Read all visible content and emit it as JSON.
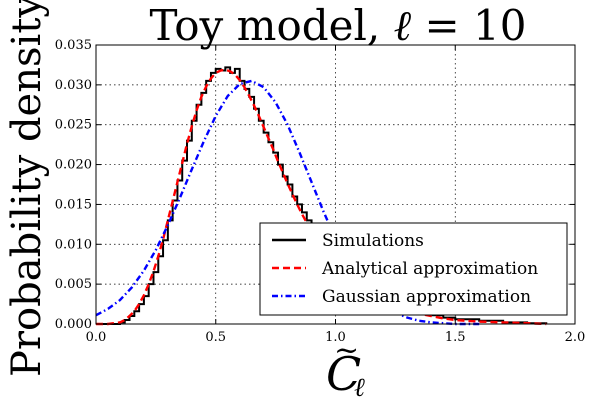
{
  "chart_data": {
    "type": "line",
    "title_prefix": "Toy model, ",
    "title_ell": "ℓ",
    "title_suffix": " = 10",
    "ylabel": "Probability density",
    "xlabel_main": "C",
    "xlabel_tilde": "~",
    "xlabel_sub": "ℓ",
    "xlim": [
      0.0,
      2.0
    ],
    "ylim": [
      0.0,
      0.035
    ],
    "xticks": [
      {
        "value": 0.0,
        "label": "0.0"
      },
      {
        "value": 0.5,
        "label": "0.5"
      },
      {
        "value": 1.0,
        "label": "1.0"
      },
      {
        "value": 1.5,
        "label": "1.5"
      },
      {
        "value": 2.0,
        "label": "2.0"
      }
    ],
    "yticks": [
      {
        "value": 0.0,
        "label": "0.000"
      },
      {
        "value": 0.005,
        "label": "0.005"
      },
      {
        "value": 0.01,
        "label": "0.010"
      },
      {
        "value": 0.015,
        "label": "0.015"
      },
      {
        "value": 0.02,
        "label": "0.020"
      },
      {
        "value": 0.025,
        "label": "0.025"
      },
      {
        "value": 0.03,
        "label": "0.030"
      },
      {
        "value": 0.035,
        "label": "0.035"
      }
    ],
    "grid": true,
    "legend_position": "lower-right",
    "series": [
      {
        "name": "Simulations",
        "color": "#000000",
        "style": "solid-step",
        "x": [
          0.0,
          0.05,
          0.1,
          0.12,
          0.14,
          0.16,
          0.18,
          0.2,
          0.22,
          0.24,
          0.26,
          0.28,
          0.3,
          0.32,
          0.34,
          0.36,
          0.38,
          0.4,
          0.42,
          0.44,
          0.46,
          0.48,
          0.5,
          0.52,
          0.54,
          0.56,
          0.58,
          0.6,
          0.62,
          0.64,
          0.66,
          0.68,
          0.7,
          0.72,
          0.74,
          0.76,
          0.78,
          0.8,
          0.82,
          0.84,
          0.86,
          0.88,
          0.9,
          0.92,
          0.94,
          0.96,
          0.98,
          1.0,
          1.05,
          1.1,
          1.15,
          1.2,
          1.25,
          1.3,
          1.35,
          1.4,
          1.45,
          1.5,
          1.6,
          1.7,
          1.8,
          1.88
        ],
        "y": [
          0.0,
          0.0,
          0.0002,
          0.0005,
          0.001,
          0.0016,
          0.0025,
          0.0035,
          0.005,
          0.0065,
          0.0085,
          0.0105,
          0.013,
          0.0155,
          0.018,
          0.0205,
          0.023,
          0.0255,
          0.0275,
          0.029,
          0.0305,
          0.0315,
          0.032,
          0.0318,
          0.0322,
          0.0315,
          0.032,
          0.0305,
          0.0295,
          0.0285,
          0.027,
          0.0255,
          0.024,
          0.0228,
          0.0215,
          0.02,
          0.0185,
          0.0175,
          0.016,
          0.015,
          0.014,
          0.013,
          0.012,
          0.011,
          0.01,
          0.0092,
          0.0085,
          0.0078,
          0.0065,
          0.0052,
          0.0042,
          0.0034,
          0.0026,
          0.002,
          0.0015,
          0.0011,
          0.0008,
          0.0006,
          0.0004,
          0.0002,
          0.0001,
          0.0
        ]
      },
      {
        "name": "Analytical approximation",
        "color": "#ff0000",
        "style": "dashed",
        "x": [
          0.0,
          0.05,
          0.1,
          0.12,
          0.14,
          0.16,
          0.18,
          0.2,
          0.22,
          0.24,
          0.26,
          0.28,
          0.3,
          0.32,
          0.34,
          0.36,
          0.38,
          0.4,
          0.42,
          0.44,
          0.46,
          0.48,
          0.5,
          0.52,
          0.54,
          0.56,
          0.58,
          0.6,
          0.62,
          0.64,
          0.66,
          0.68,
          0.7,
          0.72,
          0.74,
          0.76,
          0.78,
          0.8,
          0.82,
          0.84,
          0.86,
          0.88,
          0.9,
          0.92,
          0.94,
          0.96,
          0.98,
          1.0,
          1.05,
          1.1,
          1.15,
          1.2,
          1.25,
          1.3,
          1.35,
          1.4,
          1.45,
          1.5,
          1.6,
          1.7,
          1.8,
          1.88
        ],
        "y": [
          0.0,
          0.0,
          0.0002,
          0.0005,
          0.001,
          0.0016,
          0.0025,
          0.0036,
          0.005,
          0.0066,
          0.0085,
          0.0106,
          0.013,
          0.0154,
          0.0178,
          0.0202,
          0.0226,
          0.0248,
          0.0268,
          0.0285,
          0.0298,
          0.0308,
          0.0315,
          0.0318,
          0.0319,
          0.0317,
          0.0313,
          0.0306,
          0.0297,
          0.0286,
          0.0274,
          0.0261,
          0.0247,
          0.0233,
          0.0219,
          0.0204,
          0.019,
          0.0176,
          0.0163,
          0.015,
          0.0138,
          0.0127,
          0.0116,
          0.0106,
          0.0097,
          0.0088,
          0.008,
          0.0072,
          0.0058,
          0.0046,
          0.0036,
          0.0028,
          0.0022,
          0.0017,
          0.0013,
          0.001,
          0.0007,
          0.0005,
          0.0003,
          0.0002,
          0.0001,
          0.0
        ]
      },
      {
        "name": "Gaussian approximation",
        "color": "#0000ff",
        "style": "dashdot",
        "x": [
          0.0,
          0.05,
          0.1,
          0.15,
          0.2,
          0.25,
          0.3,
          0.35,
          0.4,
          0.45,
          0.5,
          0.55,
          0.6,
          0.65,
          0.7,
          0.75,
          0.8,
          0.85,
          0.9,
          0.95,
          1.0,
          1.05,
          1.1,
          1.15,
          1.2,
          1.25,
          1.3,
          1.35,
          1.4,
          1.45,
          1.5,
          1.55,
          1.6
        ],
        "y": [
          0.0011,
          0.0019,
          0.003,
          0.0046,
          0.0067,
          0.0093,
          0.0124,
          0.0158,
          0.0194,
          0.0229,
          0.0261,
          0.0286,
          0.0301,
          0.0305,
          0.0297,
          0.0278,
          0.025,
          0.0215,
          0.0178,
          0.0141,
          0.0107,
          0.0077,
          0.0054,
          0.0036,
          0.0023,
          0.0014,
          0.0008,
          0.0004,
          0.0002,
          0.0001,
          0.0,
          0.0,
          0.0
        ]
      }
    ]
  }
}
